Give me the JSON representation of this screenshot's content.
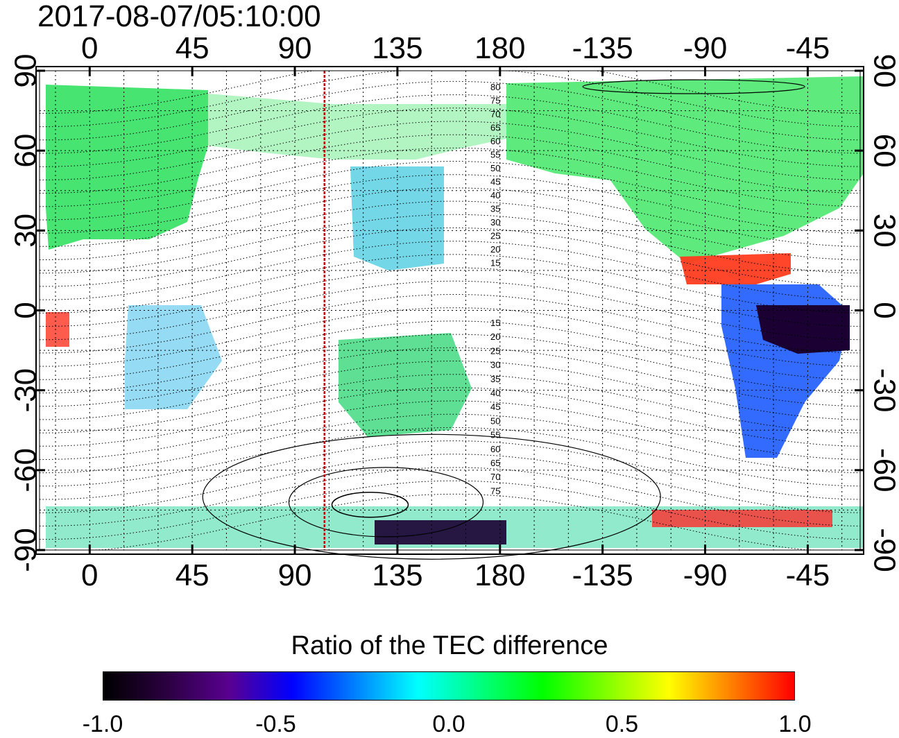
{
  "header": {
    "timestamp": "2017-08-07/05:10:00"
  },
  "map": {
    "type": "map",
    "title": "2017-08-07/05:10:00",
    "x_ticks_top": [
      "0",
      "45",
      "90",
      "135",
      "180",
      "-135",
      "-90",
      "-45"
    ],
    "x_ticks_bottom": [
      "0",
      "45",
      "90",
      "135",
      "180",
      "-135",
      "-90",
      "-45"
    ],
    "y_ticks_left": [
      "90",
      "60",
      "30",
      "0",
      "-30",
      "-60",
      "-90"
    ],
    "y_ticks_right": [
      "90",
      "60",
      "30",
      "0",
      "-30",
      "-60",
      "-90"
    ],
    "tick_longitudes": [
      0,
      45,
      90,
      135,
      180,
      225,
      270,
      315
    ],
    "tick_latitudes": [
      90,
      60,
      30,
      0,
      -30,
      -60,
      -90
    ],
    "lon_range": [
      -22,
      338
    ],
    "lat_range": [
      -90,
      90
    ],
    "grid": true,
    "terminator_longitude": 103,
    "terminator_color": "#cc0000",
    "contour_labels_north": [
      "80",
      "75",
      "70",
      "65",
      "60",
      "55",
      "50",
      "45",
      "40",
      "35",
      "30",
      "25",
      "20",
      "15"
    ],
    "contour_labels_south": [
      "15",
      "20",
      "25",
      "30",
      "35",
      "40",
      "45",
      "50",
      "55",
      "60",
      "65",
      "70",
      "75"
    ]
  },
  "colorbar": {
    "title": "Ratio of the TEC difference",
    "tick_labels": [
      "-1.0",
      "-0.5",
      "0.0",
      "0.5",
      "1.0"
    ],
    "range": [
      -1.0,
      1.0
    ],
    "colors": [
      "#000000",
      "#2a0040",
      "#5a0090",
      "#0000ff",
      "#0080ff",
      "#00ffff",
      "#00ff80",
      "#00ff00",
      "#80ff00",
      "#ffff00",
      "#ff8000",
      "#ff0000"
    ]
  }
}
